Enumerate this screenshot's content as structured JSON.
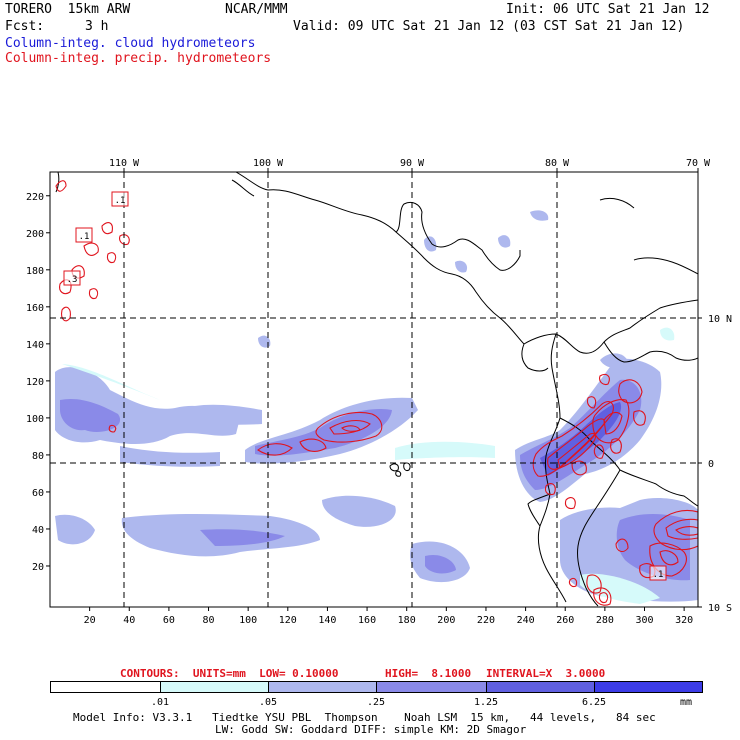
{
  "header": {
    "model": "TORERO  15km ARW",
    "org": "NCAR/MMM",
    "init": "Init: 06 UTC Sat 21 Jan 12",
    "fcst_label": "Fcst:",
    "fcst_value": "3 h",
    "valid": "Valid: 09 UTC Sat 21 Jan 12 (03 CST Sat 21 Jan 12)",
    "field1": "Column-integ. cloud hydrometeors",
    "field2": "Column-integ. precip. hydrometeors"
  },
  "map": {
    "top_lon_labels": [
      "110 W",
      "100 W",
      "90 W",
      "80 W",
      "70 W"
    ],
    "right_lat_labels": [
      "10 N",
      "0",
      "10 S"
    ],
    "y_ticks": [
      "220",
      "200",
      "180",
      "160",
      "140",
      "120",
      "100",
      "80",
      "60",
      "40",
      "20"
    ],
    "x_ticks": [
      "20",
      "40",
      "60",
      "80",
      "100",
      "120",
      "140",
      "160",
      "180",
      "200",
      "220",
      "240",
      "260",
      "280",
      "300",
      "320"
    ],
    "boxed_labels": [
      ".1",
      ".1",
      ".3",
      ".1"
    ],
    "colors": {
      "cloud_1": "#d6fafa",
      "cloud_2": "#aeb8ee",
      "cloud_3": "#8a8ae8",
      "cloud_4": "#6060e0",
      "precip": "#e0141e",
      "coast": "#000000"
    }
  },
  "contours_info": {
    "units": "CONTOURS:  UNITS=mm  LOW= 0.10000",
    "high": "HIGH=  8.1000",
    "interval": "INTERVAL=X  3.0000"
  },
  "colorbar": {
    "ticks": [
      ".01",
      ".05",
      ".25",
      "1.25",
      "6.25"
    ],
    "unit": "mm",
    "colors": [
      "#ffffff",
      "#d6fafa",
      "#aeb8ee",
      "#8a8ae8",
      "#6060e0",
      "#3c3ce6",
      "#1a1ae8"
    ]
  },
  "footer": {
    "line1": "Model Info: V3.3.1   Tiedtke YSU PBL  Thompson    Noah LSM  15 km,   44 levels,   84 sec",
    "line2": "LW: Godd SW: Goddard DIFF: simple KM: 2D Smagor"
  }
}
